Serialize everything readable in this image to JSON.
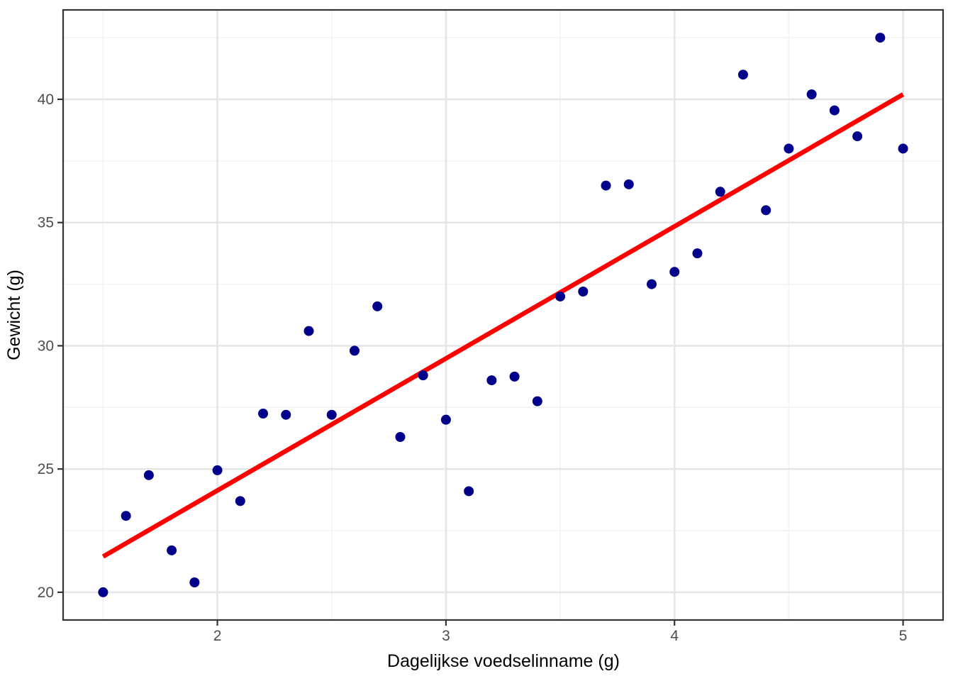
{
  "chart_data": {
    "type": "scatter",
    "title": "",
    "xlabel": "Dagelijkse voedselinname (g)",
    "ylabel": "Gewicht (g)",
    "x": [
      1.5,
      1.6,
      1.7,
      1.8,
      1.9,
      2.0,
      2.1,
      2.2,
      2.3,
      2.4,
      2.5,
      2.6,
      2.7,
      2.8,
      2.9,
      3.0,
      3.1,
      3.2,
      3.3,
      3.4,
      3.5,
      3.6,
      3.7,
      3.8,
      3.9,
      4.0,
      4.1,
      4.2,
      4.3,
      4.4,
      4.5,
      4.6,
      4.7,
      4.8,
      4.9,
      5.0
    ],
    "y": [
      20.0,
      23.1,
      24.75,
      21.7,
      20.4,
      24.95,
      23.7,
      27.25,
      27.2,
      30.6,
      27.2,
      29.8,
      31.6,
      26.3,
      28.8,
      27.0,
      24.1,
      28.6,
      28.75,
      27.75,
      32.0,
      32.2,
      36.5,
      36.55,
      32.5,
      33.0,
      33.75,
      36.25,
      41.0,
      35.5,
      38.0,
      40.2,
      39.55,
      38.5,
      42.5,
      38.0
    ],
    "xlim": [
      1.325,
      5.175
    ],
    "ylim": [
      18.875,
      43.625
    ],
    "x_major_ticks": [
      2,
      3,
      4,
      5
    ],
    "y_major_ticks": [
      20,
      25,
      30,
      35,
      40
    ],
    "x_tick_labels": [
      "2",
      "3",
      "4",
      "5"
    ],
    "y_tick_labels": [
      "20",
      "25",
      "30",
      "35",
      "40"
    ],
    "x_minor_gridlines": [
      1.5,
      2.5,
      3.5,
      4.5
    ],
    "y_minor_gridlines": [
      22.5,
      27.5,
      32.5,
      37.5,
      42.5
    ],
    "grid": "on",
    "legend": "none",
    "regression_line": {
      "x_start": 1.5,
      "y_start": 21.45,
      "x_end": 5.0,
      "y_end": 40.2
    },
    "point_radius_px": 7,
    "colors": {
      "point": "#00008B",
      "regression_line": "#FF0000",
      "grid_major": "#E6E6E6",
      "grid_minor": "#F2F2F2",
      "panel_border": "#333333",
      "tick_mark": "#333333",
      "tick_label": "#4D4D4D",
      "axis_title": "#000000",
      "panel_background": "#FFFFFF"
    }
  }
}
